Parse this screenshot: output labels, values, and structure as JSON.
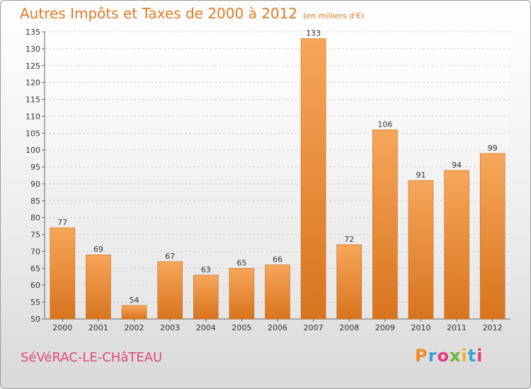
{
  "title": "Autres Impôts et Taxes de 2000 à 2012",
  "subtitle": "(en milliers d'€)",
  "footer": {
    "city": "SéVéRAC-LE-CHâTEAU",
    "brand": "Proxiti",
    "brand_colors": [
      "#f28a1e",
      "#3aa0d8",
      "#e33a7c",
      "#6ab33f",
      "#f7b21b",
      "#3aa0d8",
      "#e33a7c"
    ]
  },
  "colors": {
    "accent": "#e07a24",
    "city": "#e04880",
    "bar_light": "#f7a65a",
    "bar_dark": "#d8741e"
  },
  "chart_data": {
    "type": "bar",
    "categories": [
      "2000",
      "2001",
      "2002",
      "2003",
      "2004",
      "2005",
      "2006",
      "2007",
      "2008",
      "2009",
      "2010",
      "2011",
      "2012"
    ],
    "values": [
      77,
      69,
      54,
      67,
      63,
      65,
      66,
      133,
      72,
      106,
      91,
      94,
      99
    ],
    "ylim": [
      50,
      135
    ],
    "yticks": [
      50,
      55,
      60,
      65,
      70,
      75,
      80,
      85,
      90,
      95,
      100,
      105,
      110,
      115,
      120,
      125,
      130,
      135
    ],
    "grid": true,
    "legend": "none"
  }
}
